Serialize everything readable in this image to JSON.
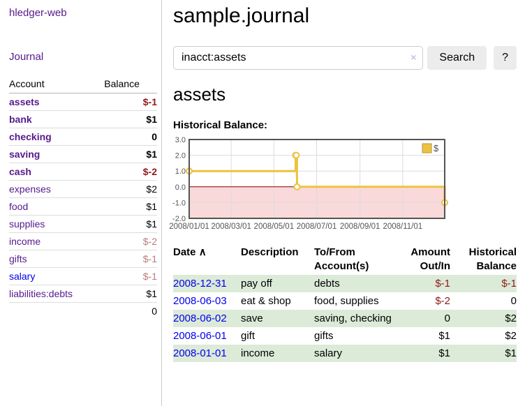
{
  "app": {
    "title": "hledger-web"
  },
  "sidebar": {
    "journal_link": "Journal",
    "headers": {
      "account": "Account",
      "balance": "Balance"
    },
    "accounts": [
      {
        "name": "assets",
        "balance": "$-1"
      },
      {
        "name": "bank",
        "balance": "$1"
      },
      {
        "name": "checking",
        "balance": "0"
      },
      {
        "name": "saving",
        "balance": "$1"
      },
      {
        "name": "cash",
        "balance": "$-2"
      },
      {
        "name": "expenses",
        "balance": "$2"
      },
      {
        "name": "food",
        "balance": "$1"
      },
      {
        "name": "supplies",
        "balance": "$1"
      },
      {
        "name": "income",
        "balance": "$-2"
      },
      {
        "name": "gifts",
        "balance": "$-1"
      },
      {
        "name": "salary",
        "balance": "$-1"
      },
      {
        "name": "liabilities:debts",
        "balance": "$1"
      }
    ],
    "total": "0"
  },
  "header": {
    "title": "sample.journal"
  },
  "search": {
    "value": "inacct:assets",
    "clear_icon": "×",
    "search_label": "Search",
    "help_label": "?"
  },
  "account_page": {
    "title": "assets",
    "chart_label": "Historical Balance:"
  },
  "chart_data": {
    "type": "line",
    "step": true,
    "title": "Historical Balance",
    "series": [
      {
        "name": "$",
        "color": "#edc240",
        "points": [
          [
            "2008-01-01",
            1
          ],
          [
            "2008-06-01",
            2
          ],
          [
            "2008-06-02",
            2
          ],
          [
            "2008-06-03",
            0
          ],
          [
            "2008-12-31",
            -1
          ]
        ]
      }
    ],
    "x_range": [
      "2008-01-01",
      "2008-12-31"
    ],
    "x_tick_dates": [
      "2008-01-01",
      "2008-03-01",
      "2008-05-01",
      "2008-07-01",
      "2008-09-01",
      "2008-11-01"
    ],
    "x_ticks": [
      "2008/01/01",
      "2008/03/01",
      "2008/05/01",
      "2008/07/01",
      "2008/09/01",
      "2008/11/01"
    ],
    "y_ticks": [
      3.0,
      2.0,
      1.0,
      0.0,
      -1.0,
      -2.0
    ],
    "ylim": [
      -2,
      3
    ],
    "grid": true,
    "legend": {
      "label": "$",
      "position": "top-right"
    },
    "colors": {
      "line": "#edc240",
      "marker_fill": "#ffffff",
      "negative_region": "#f9d9d9",
      "zero_line": "#8b0000",
      "grid": "#dcdcdc",
      "border": "#545454",
      "tick_text": "#545454"
    }
  },
  "register": {
    "sort_icon": "∧",
    "headers": [
      "Date",
      "Description",
      "To/From Account(s)",
      "Amount Out/In",
      "Historical Balance"
    ],
    "rows": [
      {
        "date": "2008-12-31",
        "description": "pay off",
        "accounts": "debts",
        "amount": "$-1",
        "balance": "$-1"
      },
      {
        "date": "2008-06-03",
        "description": "eat & shop",
        "accounts": "food, supplies",
        "amount": "$-2",
        "balance": "0"
      },
      {
        "date": "2008-06-02",
        "description": "save",
        "accounts": "saving, checking",
        "amount": "0",
        "balance": "$2"
      },
      {
        "date": "2008-06-01",
        "description": "gift",
        "accounts": "gifts",
        "amount": "$1",
        "balance": "$2"
      },
      {
        "date": "2008-01-01",
        "description": "income",
        "accounts": "salary",
        "amount": "$1",
        "balance": "$1"
      }
    ]
  },
  "colors": {
    "link_purple": "#551a8b",
    "link_blue": "#0000ee",
    "negative_strong": "#8e1a1a",
    "negative_muted": "#bb7b7b",
    "row_stripe_green": "#dcead8"
  }
}
